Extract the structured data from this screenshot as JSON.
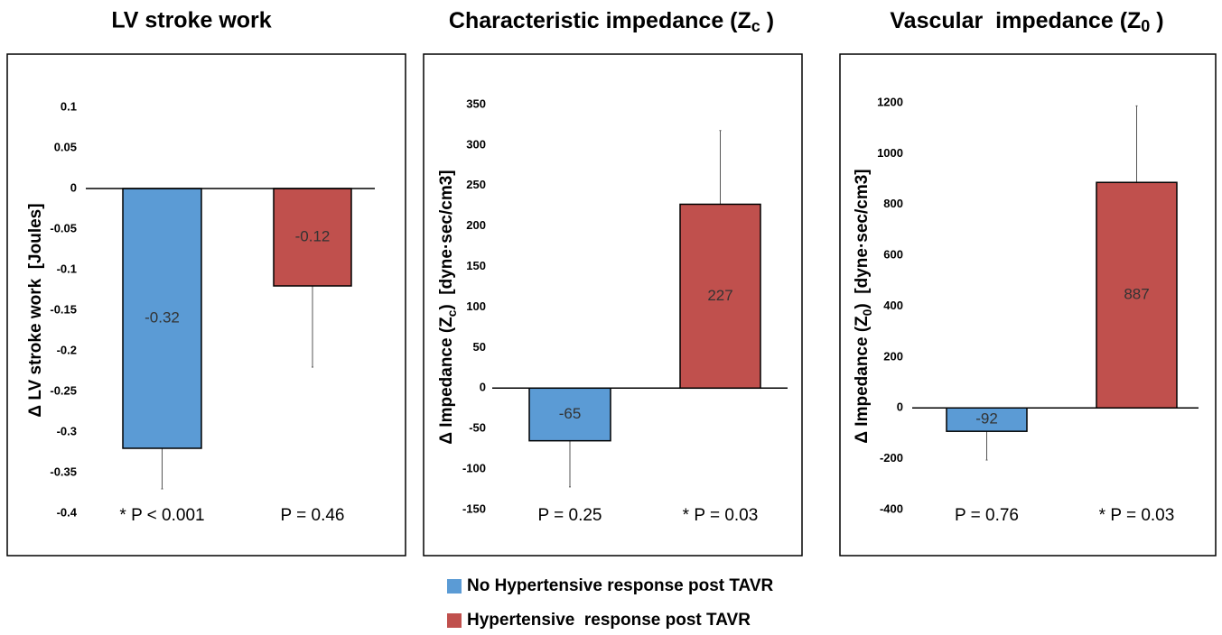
{
  "chart_data": [
    {
      "type": "bar",
      "title": "LV stroke work",
      "ylabel": "Δ LV stroke work  [Joules]",
      "categories": [
        "* P < 0.001",
        "P = 0.46"
      ],
      "values": [
        -0.32,
        -0.12
      ],
      "errors": [
        0.05,
        0.1
      ],
      "colors": [
        "#5b9bd5",
        "#c0504d"
      ],
      "ylim": [
        -0.4,
        0.1
      ],
      "yticks": [
        -0.4,
        -0.35,
        -0.3,
        -0.25,
        -0.2,
        -0.15,
        -0.1,
        -0.05,
        0,
        0.05,
        0.1
      ]
    },
    {
      "type": "bar",
      "title": [
        "Characteristic impedance (Z",
        {
          "sub": "c"
        },
        " )"
      ],
      "ylabel": [
        "Δ Impedance (Z",
        {
          "sub": "c"
        },
        ")  [dyne·sec/cm3]"
      ],
      "categories": [
        "P = 0.25",
        "* P = 0.03"
      ],
      "values": [
        -65,
        227
      ],
      "errors": [
        57,
        91
      ],
      "colors": [
        "#5b9bd5",
        "#c0504d"
      ],
      "ylim": [
        -150,
        350
      ],
      "yticks": [
        -150,
        -100,
        -50,
        0,
        50,
        100,
        150,
        200,
        250,
        300,
        350
      ]
    },
    {
      "type": "bar",
      "title": [
        "Vascular  impedance (Z",
        {
          "sub": "0"
        },
        " )"
      ],
      "ylabel": [
        "Δ Impedance (Z",
        {
          "sub": "0"
        },
        ")  [dyne·sec/cm3]"
      ],
      "categories": [
        "P = 0.76",
        "* P = 0.03"
      ],
      "values": [
        -92,
        887
      ],
      "errors": [
        113,
        301
      ],
      "colors": [
        "#5b9bd5",
        "#c0504d"
      ],
      "ylim": [
        -400,
        1200
      ],
      "yticks": [
        -400,
        -200,
        0,
        200,
        400,
        600,
        800,
        1000,
        1200
      ]
    }
  ],
  "legend": [
    {
      "name": "No Hypertensive response post TAVR",
      "color": "#5b9bd5"
    },
    {
      "name": "Hypertensive  response post TAVR",
      "color": "#c0504d"
    }
  ]
}
